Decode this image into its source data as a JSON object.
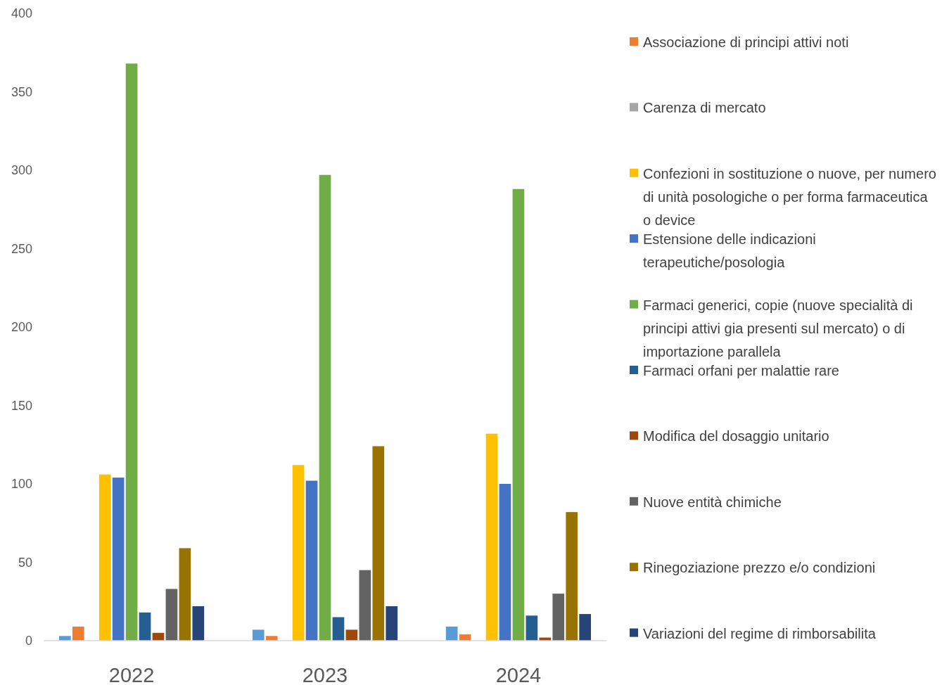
{
  "chart_data": {
    "type": "bar",
    "categories": [
      "2022",
      "2023",
      "2024"
    ],
    "ylim": [
      0,
      400
    ],
    "yticks": [
      0,
      50,
      100,
      150,
      200,
      250,
      300,
      350,
      400
    ],
    "grid": false,
    "legend": "right",
    "series": [
      {
        "color": "#5b9bd5",
        "values": [
          3,
          7,
          9
        ]
      },
      {
        "name": "Associazione di principi attivi noti",
        "color": "#ed7d31",
        "values": [
          9,
          3,
          4
        ]
      },
      {
        "name": "Carenza di mercato",
        "color": "#a5a5a5",
        "values": [
          null,
          null,
          null
        ]
      },
      {
        "name": "Confezioni in sostituzione o nuove, per numero di unità posologiche o per forma farmaceutica o device",
        "color": "#ffc000",
        "values": [
          106,
          112,
          132
        ]
      },
      {
        "name": "Estensione delle indicazioni terapeutiche/posologia",
        "color": "#4472c4",
        "values": [
          104,
          102,
          100
        ]
      },
      {
        "name": "Farmaci generici, copie (nuove specialità di principi attivi gia presenti sul mercato) o di importazione parallela",
        "color": "#70ad47",
        "values": [
          368,
          297,
          288
        ]
      },
      {
        "name": "Farmaci orfani per malattie rare",
        "color": "#255e91",
        "values": [
          18,
          15,
          16
        ]
      },
      {
        "name": "Modifica del dosaggio unitario",
        "color": "#9e480e",
        "values": [
          5,
          7,
          2
        ]
      },
      {
        "name": "Nuove entità chimiche",
        "color": "#636363",
        "values": [
          33,
          45,
          30
        ]
      },
      {
        "name": "Rinegoziazione prezzo e/o condizioni",
        "color": "#997300",
        "values": [
          59,
          124,
          82
        ]
      },
      {
        "name": "Variazioni del regime di rimborsabilita",
        "color": "#264478",
        "values": [
          22,
          22,
          17
        ]
      }
    ]
  }
}
